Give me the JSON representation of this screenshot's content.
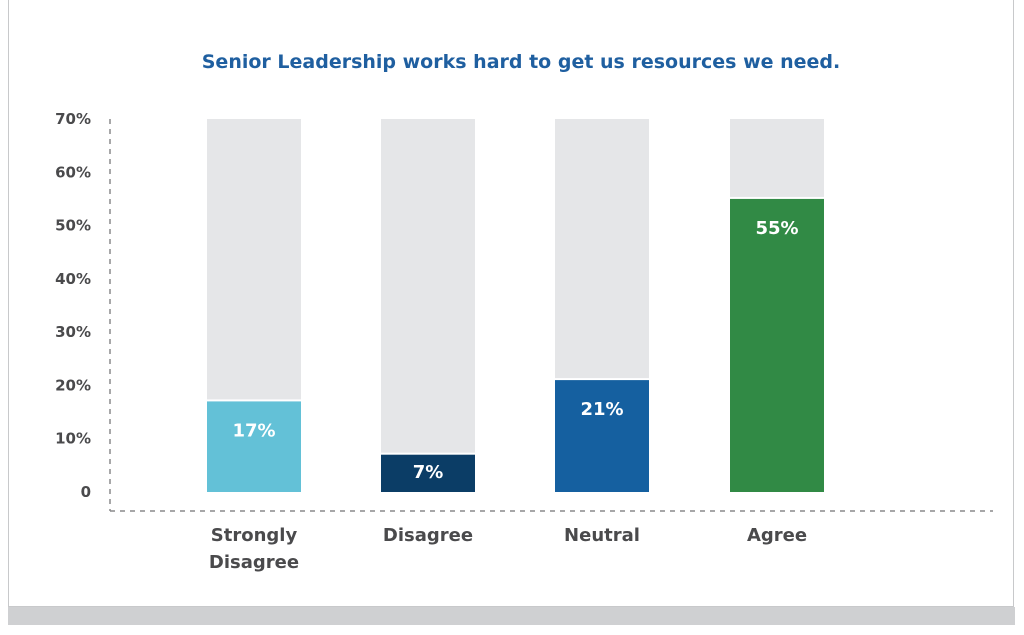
{
  "chart_data": {
    "type": "bar",
    "title": "Senior Leadership works hard to get us resources we need.",
    "xlabel": "",
    "ylabel": "",
    "ylim": [
      0,
      70
    ],
    "yticks": [
      "0",
      "10%",
      "20%",
      "30%",
      "40%",
      "50%",
      "60%",
      "70%"
    ],
    "categories": [
      [
        "Strongly",
        "Disagree"
      ],
      [
        "Disagree"
      ],
      [
        "Neutral"
      ],
      [
        "Agree"
      ]
    ],
    "values": [
      17,
      7,
      21,
      55
    ],
    "data_labels": [
      "17%",
      "7%",
      "21%",
      "55%"
    ],
    "colors": [
      "#63c1d7",
      "#0b3d66",
      "#1560a0",
      "#318a45"
    ],
    "background_bar_color": "#e5e6e8",
    "grid": false
  }
}
